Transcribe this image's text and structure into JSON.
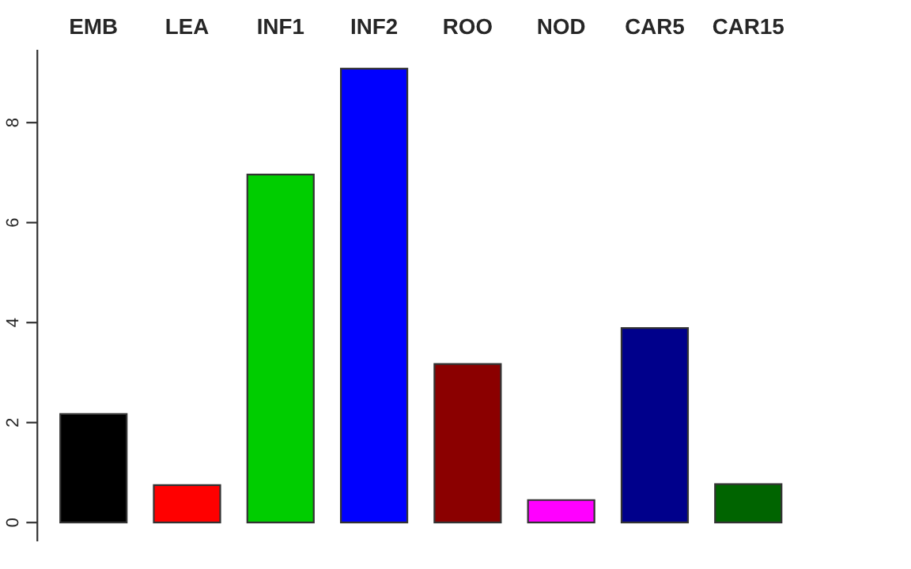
{
  "chart_data": {
    "type": "bar",
    "categories": [
      "EMB",
      "LEA",
      "INF1",
      "INF2",
      "ROO",
      "NOD",
      "CAR5",
      "CAR15"
    ],
    "values": [
      2.17,
      0.75,
      6.96,
      9.08,
      3.17,
      0.45,
      3.89,
      0.77
    ],
    "colors": [
      "#000000",
      "#ff0000",
      "#00cd00",
      "#0000ff",
      "#8b0000",
      "#ff00ff",
      "#00008b",
      "#006400"
    ],
    "ylim": [
      -0.36,
      9.44
    ],
    "yticks": [
      0,
      2,
      4,
      6,
      8
    ],
    "grid": false,
    "legend": false
  }
}
